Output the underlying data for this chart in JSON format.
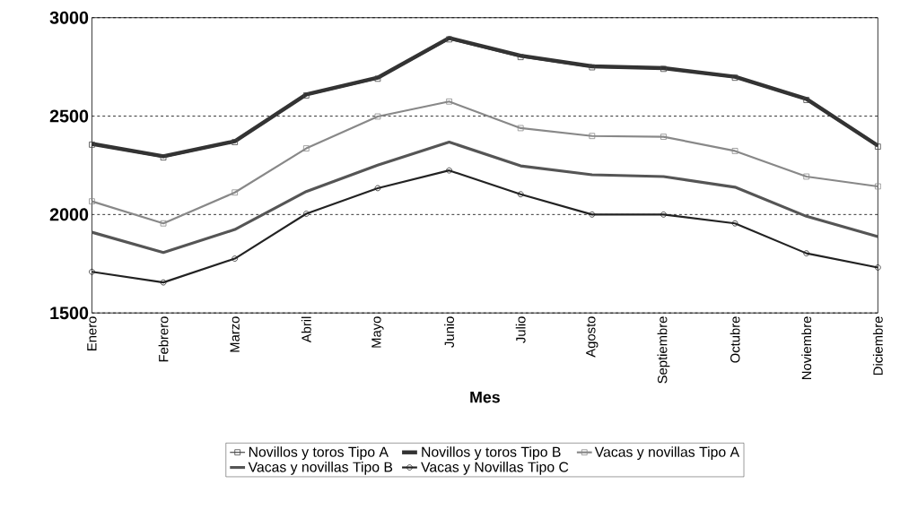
{
  "chart_data": {
    "type": "line",
    "xlabel": "Mes",
    "categories": [
      "Enero",
      "Febrero",
      "Marzo",
      "Abril",
      "Mayo",
      "Junio",
      "Julio",
      "Agosto",
      "Septiembre",
      "Octubre",
      "Noviembre",
      "Diciembre"
    ],
    "series": [
      {
        "name": "Novillos y toros Tipo A",
        "color": "#444444",
        "marker": "square",
        "values": [
          2355,
          2290,
          2368,
          2605,
          2690,
          2890,
          2800,
          2748,
          2740,
          2695,
          2582,
          2345
        ]
      },
      {
        "name": "Novillos y toros Tipo B",
        "color": "#333333",
        "marker": "none",
        "values": [
          2359,
          2296,
          2372,
          2610,
          2695,
          2897,
          2807,
          2753,
          2744,
          2700,
          2587,
          2350
        ]
      },
      {
        "name": "Vacas y novillas Tipo A",
        "color": "#888888",
        "marker": "square",
        "values": [
          2067,
          1955,
          2112,
          2336,
          2498,
          2574,
          2439,
          2399,
          2395,
          2323,
          2193,
          2143
        ]
      },
      {
        "name": "Vacas y novillas Tipo B",
        "color": "#555555",
        "marker": "none",
        "values": [
          1910,
          1807,
          1924,
          2117,
          2251,
          2368,
          2247,
          2202,
          2193,
          2139,
          1991,
          1888
        ]
      },
      {
        "name": "Vacas y Novillas Tipo C",
        "color": "#222222",
        "marker": "circle",
        "values": [
          1709,
          1655,
          1776,
          2004,
          2134,
          2224,
          2103,
          2000,
          2000,
          1955,
          1803,
          1731
        ]
      }
    ],
    "ylim": [
      1500,
      3000
    ],
    "yticks": [
      1500,
      2000,
      2500,
      3000
    ],
    "grid": "y",
    "line_style": "solid",
    "legend": "bottom"
  }
}
